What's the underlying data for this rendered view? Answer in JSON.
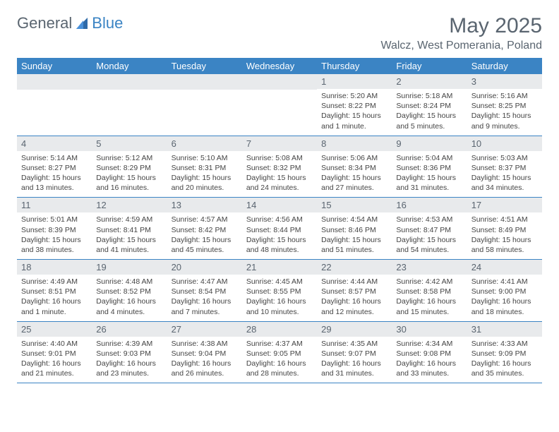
{
  "brand": {
    "part1": "General",
    "part2": "Blue",
    "color1": "#5a6570",
    "color2": "#3b84c4"
  },
  "title": "May 2025",
  "location": "Walcz, West Pomerania, Poland",
  "weekdays": [
    "Sunday",
    "Monday",
    "Tuesday",
    "Wednesday",
    "Thursday",
    "Friday",
    "Saturday"
  ],
  "header_bg": "#3b84c4",
  "daynum_bg": "#e8eaec",
  "weeks": [
    [
      null,
      null,
      null,
      null,
      {
        "n": "1",
        "sr": "5:20 AM",
        "ss": "8:22 PM",
        "dl": "15 hours and 1 minute."
      },
      {
        "n": "2",
        "sr": "5:18 AM",
        "ss": "8:24 PM",
        "dl": "15 hours and 5 minutes."
      },
      {
        "n": "3",
        "sr": "5:16 AM",
        "ss": "8:25 PM",
        "dl": "15 hours and 9 minutes."
      }
    ],
    [
      {
        "n": "4",
        "sr": "5:14 AM",
        "ss": "8:27 PM",
        "dl": "15 hours and 13 minutes."
      },
      {
        "n": "5",
        "sr": "5:12 AM",
        "ss": "8:29 PM",
        "dl": "15 hours and 16 minutes."
      },
      {
        "n": "6",
        "sr": "5:10 AM",
        "ss": "8:31 PM",
        "dl": "15 hours and 20 minutes."
      },
      {
        "n": "7",
        "sr": "5:08 AM",
        "ss": "8:32 PM",
        "dl": "15 hours and 24 minutes."
      },
      {
        "n": "8",
        "sr": "5:06 AM",
        "ss": "8:34 PM",
        "dl": "15 hours and 27 minutes."
      },
      {
        "n": "9",
        "sr": "5:04 AM",
        "ss": "8:36 PM",
        "dl": "15 hours and 31 minutes."
      },
      {
        "n": "10",
        "sr": "5:03 AM",
        "ss": "8:37 PM",
        "dl": "15 hours and 34 minutes."
      }
    ],
    [
      {
        "n": "11",
        "sr": "5:01 AM",
        "ss": "8:39 PM",
        "dl": "15 hours and 38 minutes."
      },
      {
        "n": "12",
        "sr": "4:59 AM",
        "ss": "8:41 PM",
        "dl": "15 hours and 41 minutes."
      },
      {
        "n": "13",
        "sr": "4:57 AM",
        "ss": "8:42 PM",
        "dl": "15 hours and 45 minutes."
      },
      {
        "n": "14",
        "sr": "4:56 AM",
        "ss": "8:44 PM",
        "dl": "15 hours and 48 minutes."
      },
      {
        "n": "15",
        "sr": "4:54 AM",
        "ss": "8:46 PM",
        "dl": "15 hours and 51 minutes."
      },
      {
        "n": "16",
        "sr": "4:53 AM",
        "ss": "8:47 PM",
        "dl": "15 hours and 54 minutes."
      },
      {
        "n": "17",
        "sr": "4:51 AM",
        "ss": "8:49 PM",
        "dl": "15 hours and 58 minutes."
      }
    ],
    [
      {
        "n": "18",
        "sr": "4:49 AM",
        "ss": "8:51 PM",
        "dl": "16 hours and 1 minute."
      },
      {
        "n": "19",
        "sr": "4:48 AM",
        "ss": "8:52 PM",
        "dl": "16 hours and 4 minutes."
      },
      {
        "n": "20",
        "sr": "4:47 AM",
        "ss": "8:54 PM",
        "dl": "16 hours and 7 minutes."
      },
      {
        "n": "21",
        "sr": "4:45 AM",
        "ss": "8:55 PM",
        "dl": "16 hours and 10 minutes."
      },
      {
        "n": "22",
        "sr": "4:44 AM",
        "ss": "8:57 PM",
        "dl": "16 hours and 12 minutes."
      },
      {
        "n": "23",
        "sr": "4:42 AM",
        "ss": "8:58 PM",
        "dl": "16 hours and 15 minutes."
      },
      {
        "n": "24",
        "sr": "4:41 AM",
        "ss": "9:00 PM",
        "dl": "16 hours and 18 minutes."
      }
    ],
    [
      {
        "n": "25",
        "sr": "4:40 AM",
        "ss": "9:01 PM",
        "dl": "16 hours and 21 minutes."
      },
      {
        "n": "26",
        "sr": "4:39 AM",
        "ss": "9:03 PM",
        "dl": "16 hours and 23 minutes."
      },
      {
        "n": "27",
        "sr": "4:38 AM",
        "ss": "9:04 PM",
        "dl": "16 hours and 26 minutes."
      },
      {
        "n": "28",
        "sr": "4:37 AM",
        "ss": "9:05 PM",
        "dl": "16 hours and 28 minutes."
      },
      {
        "n": "29",
        "sr": "4:35 AM",
        "ss": "9:07 PM",
        "dl": "16 hours and 31 minutes."
      },
      {
        "n": "30",
        "sr": "4:34 AM",
        "ss": "9:08 PM",
        "dl": "16 hours and 33 minutes."
      },
      {
        "n": "31",
        "sr": "4:33 AM",
        "ss": "9:09 PM",
        "dl": "16 hours and 35 minutes."
      }
    ]
  ],
  "labels": {
    "sunrise": "Sunrise:",
    "sunset": "Sunset:",
    "daylight": "Daylight:"
  }
}
